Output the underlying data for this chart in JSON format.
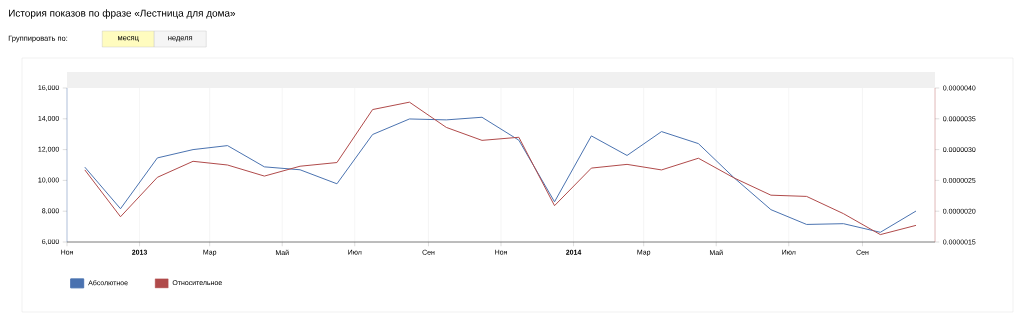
{
  "chart_data": {
    "type": "line",
    "title": "История показов по фразе «Лестница для дома»",
    "annotations": [
      "Группировать по:",
      "месяц",
      "неделя"
    ],
    "x": [
      "2012-11-16",
      "2012-12-16",
      "2013-01-16",
      "2013-02-15",
      "2013-03-16",
      "2013-04-16",
      "2013-05-16",
      "2013-06-16",
      "2013-07-16",
      "2013-08-16",
      "2013-09-16",
      "2013-10-16",
      "2013-11-16",
      "2013-12-16",
      "2014-01-16",
      "2014-02-15",
      "2014-03-16",
      "2014-04-16",
      "2014-05-16",
      "2014-06-16",
      "2014-07-16",
      "2014-08-16",
      "2014-09-16",
      "2014-10-16"
    ],
    "series": [
      {
        "name": "Абсолютное",
        "color": "#4a72b0",
        "values": [
          10860,
          8160,
          11460,
          12000,
          12260,
          10880,
          10690,
          9780,
          12980,
          13990,
          13930,
          14100,
          12610,
          8610,
          12890,
          11620,
          13170,
          12390,
          10170,
          8100,
          7140,
          7190,
          6630,
          8010
        ]
      },
      {
        "name": "Относительное",
        "color": "#b04a4a",
        "axis": "y2",
        "values": [
          2.67e-06,
          1.91e-06,
          2.55e-06,
          2.81e-06,
          2.75e-06,
          2.57e-06,
          2.73e-06,
          2.79e-06,
          3.65e-06,
          3.77e-06,
          3.36e-06,
          3.15e-06,
          3.2e-06,
          2.09e-06,
          2.7e-06,
          2.76e-06,
          2.67e-06,
          2.86e-06,
          2.54e-06,
          2.26e-06,
          2.24e-06,
          1.96e-06,
          1.62e-06,
          1.77e-06
        ]
      }
    ],
    "xlim": [
      "2012-11-01",
      "2014-11-01"
    ],
    "xticks": [
      {
        "value": "2012-11-01",
        "label": "Ноя"
      },
      {
        "value": "2013-01-01",
        "label": "2013"
      },
      {
        "value": "2013-03-01",
        "label": "Мар"
      },
      {
        "value": "2013-05-01",
        "label": "Май"
      },
      {
        "value": "2013-07-01",
        "label": "Июл"
      },
      {
        "value": "2013-09-01",
        "label": "Сен"
      },
      {
        "value": "2013-11-01",
        "label": "Ноя"
      },
      {
        "value": "2014-01-01",
        "label": "2014"
      },
      {
        "value": "2014-03-01",
        "label": "Мар"
      },
      {
        "value": "2014-05-01",
        "label": "Май"
      },
      {
        "value": "2014-07-01",
        "label": "Июл"
      },
      {
        "value": "2014-09-01",
        "label": "Сен"
      }
    ],
    "ylim": [
      6000,
      16000
    ],
    "yticks": [
      {
        "value": 6000,
        "label": "6,000"
      },
      {
        "value": 8000,
        "label": "8,000"
      },
      {
        "value": 10000,
        "label": "10,000"
      },
      {
        "value": 12000,
        "label": "12,000"
      },
      {
        "value": 14000,
        "label": "14,000"
      },
      {
        "value": 16000,
        "label": "16,000"
      }
    ],
    "y2lim": [
      1.5e-06,
      4e-06
    ],
    "y2ticks": [
      {
        "value": 1.5e-06,
        "label": "0.0000015"
      },
      {
        "value": 2e-06,
        "label": "0.0000020"
      },
      {
        "value": 2.5e-06,
        "label": "0.0000025"
      },
      {
        "value": 3e-06,
        "label": "0.0000030"
      },
      {
        "value": 3.5e-06,
        "label": "0.0000035"
      },
      {
        "value": 4e-06,
        "label": "0.0000040"
      }
    ],
    "grid": "x",
    "legend": "bottom left",
    "marker": "none",
    "line_style": "solid"
  }
}
